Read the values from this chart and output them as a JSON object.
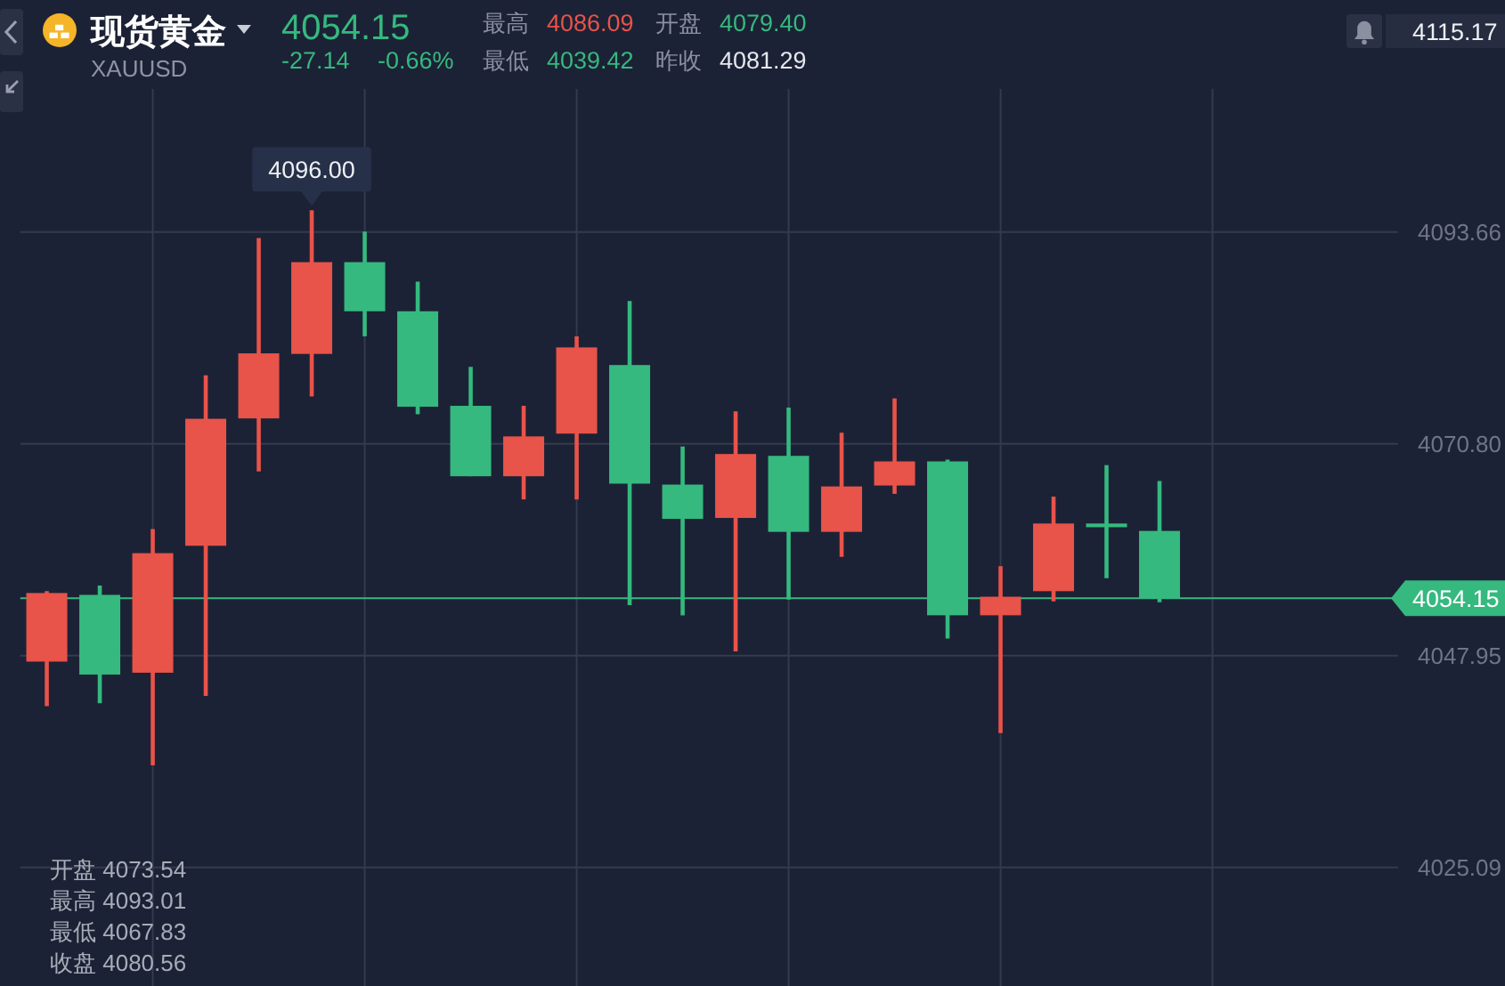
{
  "chart_data": {
    "type": "candlestick",
    "title": "现货黄金",
    "subtitle": "XAUUSD",
    "categories": [
      null,
      null,
      null,
      null,
      null,
      null,
      null,
      null,
      null,
      null,
      null,
      null,
      null,
      null,
      null,
      null,
      null,
      null,
      null,
      null,
      null,
      null,
      null,
      null,
      null,
      null
    ],
    "ohlc": [
      [
        4047.3,
        4054.9,
        4042.5,
        4054.7
      ],
      [
        4054.5,
        4055.5,
        4042.8,
        4045.9
      ],
      [
        4046.1,
        4061.6,
        4036.1,
        4059.0
      ],
      [
        4059.8,
        4078.2,
        4043.6,
        4073.5
      ],
      [
        4073.54,
        4093.01,
        4067.83,
        4080.56
      ],
      [
        4080.5,
        4096.0,
        4075.9,
        4090.4
      ],
      [
        4090.4,
        4093.7,
        4082.4,
        4085.1
      ],
      [
        4085.1,
        4088.3,
        4074.0,
        4074.8
      ],
      [
        4074.9,
        4079.1,
        4067.3,
        4067.3
      ],
      [
        4067.3,
        4074.9,
        4064.8,
        4071.6
      ],
      [
        4071.9,
        4082.4,
        4064.8,
        4081.2
      ],
      [
        4079.3,
        4086.2,
        4053.4,
        4066.5
      ],
      [
        4066.4,
        4070.5,
        4052.3,
        4062.7
      ],
      [
        4062.8,
        4074.3,
        4048.4,
        4069.7
      ],
      [
        4069.5,
        4074.7,
        4054.0,
        4061.3
      ],
      [
        4061.3,
        4072.0,
        4058.6,
        4066.2
      ],
      [
        4066.3,
        4075.7,
        4065.4,
        4068.9
      ],
      [
        4068.9,
        4069.1,
        4049.8,
        4052.3
      ],
      [
        4052.3,
        4057.6,
        4039.6,
        4054.3
      ],
      [
        4054.9,
        4065.1,
        4053.8,
        4062.2
      ],
      [
        4062.2,
        4068.5,
        4056.3,
        4061.8
      ],
      [
        4061.4,
        4066.8,
        4053.7,
        4054.15
      ],
      null,
      null,
      null,
      null
    ],
    "colors": [
      "#e8534a",
      "#35b97f",
      "#e8534a",
      "#e8534a",
      "#e8534a",
      "#e8534a",
      "#35b97f",
      "#35b97f",
      "#35b97f",
      "#e8534a",
      "#e8534a",
      "#35b97f",
      "#35b97f",
      "#e8534a",
      "#35b97f",
      "#e8534a",
      "#e8534a",
      "#35b97f",
      "#e8534a",
      "#e8534a",
      "#35b97f",
      "#35b97f",
      null,
      null,
      null,
      null
    ],
    "ylim": [
      4012.3,
      4115.17
    ],
    "yticks": [
      {
        "value": 4025.09,
        "label": "4025.09"
      },
      {
        "value": 4047.95,
        "label": "4047.95"
      },
      {
        "value": 4070.8,
        "label": "4070.80"
      },
      {
        "value": 4093.66,
        "label": "4093.66"
      },
      {
        "value": 4115.17,
        "label": "4115.17"
      }
    ],
    "grid": true,
    "tick_labels": "y",
    "ref_lines": [
      {
        "axis": "y",
        "value": 4054.15,
        "label": "4054.15",
        "color": "#35b97f"
      }
    ],
    "annotations": [
      "4054.15",
      "-27.14",
      "-0.66%",
      "最高",
      "4086.09",
      "开盘",
      "4079.40",
      "最低",
      "4039.42",
      "昨收",
      "4081.29",
      "开盘 4073.54",
      "最高 4093.01",
      "最低 4067.83",
      "收盘 4080.56",
      "4096.00"
    ]
  }
}
